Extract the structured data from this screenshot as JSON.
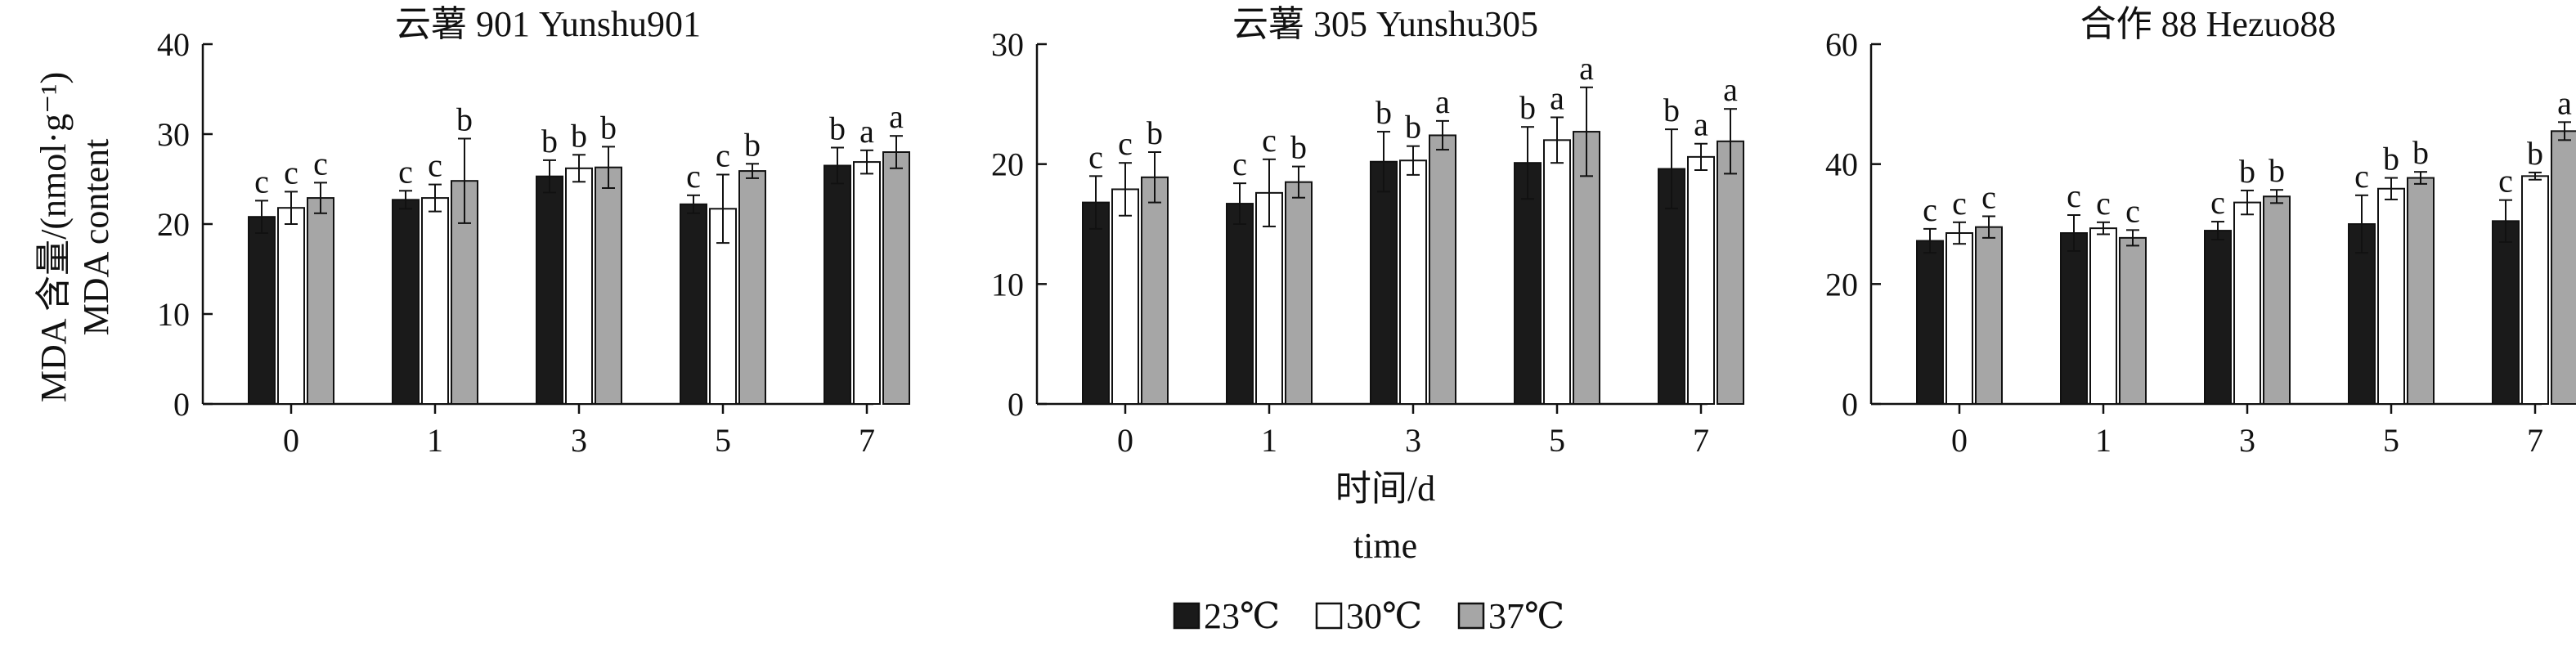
{
  "chart_data": [
    {
      "type": "bar",
      "title": "云薯 901 Yunshu901",
      "ylabel_cn": "MDA 含量/(nmol·g⁻¹)",
      "ylabel_en": "MDA content",
      "ylim": [
        0,
        40
      ],
      "yticks": [
        0,
        10,
        20,
        30,
        40
      ],
      "categories": [
        "0",
        "1",
        "3",
        "5",
        "7"
      ],
      "series": [
        {
          "name": "23℃",
          "values": [
            20.8,
            22.7,
            25.3,
            22.2,
            26.5
          ],
          "errors": [
            1.8,
            1.0,
            1.8,
            1.0,
            2.0
          ],
          "letters": [
            "c",
            "c",
            "b",
            "c",
            "b"
          ]
        },
        {
          "name": "30℃",
          "values": [
            21.8,
            22.9,
            26.2,
            21.7,
            26.9
          ],
          "errors": [
            1.8,
            1.5,
            1.5,
            3.8,
            1.3
          ],
          "letters": [
            "c",
            "c",
            "b",
            "c",
            "a"
          ]
        },
        {
          "name": "37℃",
          "values": [
            22.9,
            24.8,
            26.3,
            25.9,
            28.0
          ],
          "errors": [
            1.7,
            4.7,
            2.3,
            0.8,
            1.8
          ],
          "letters": [
            "c",
            "b",
            "b",
            "b",
            "a"
          ]
        }
      ]
    },
    {
      "type": "bar",
      "title": "云薯 305 Yunshu305",
      "ylim": [
        0,
        30
      ],
      "yticks": [
        0,
        10,
        20,
        30
      ],
      "categories": [
        "0",
        "1",
        "3",
        "5",
        "7"
      ],
      "series": [
        {
          "name": "23℃",
          "values": [
            16.8,
            16.7,
            20.2,
            20.1,
            19.6
          ],
          "errors": [
            2.2,
            1.7,
            2.5,
            3.0,
            3.3
          ],
          "letters": [
            "c",
            "c",
            "b",
            "b",
            "b"
          ]
        },
        {
          "name": "30℃",
          "values": [
            17.9,
            17.6,
            20.3,
            22.0,
            20.6
          ],
          "errors": [
            2.2,
            2.8,
            1.2,
            1.9,
            1.1
          ],
          "letters": [
            "c",
            "c",
            "b",
            "a",
            "a"
          ]
        },
        {
          "name": "37℃",
          "values": [
            18.9,
            18.5,
            22.4,
            22.7,
            21.9
          ],
          "errors": [
            2.1,
            1.3,
            1.2,
            3.7,
            2.7
          ],
          "letters": [
            "b",
            "b",
            "a",
            "a",
            "a"
          ]
        }
      ]
    },
    {
      "type": "bar",
      "title": "合作 88 Hezuo88",
      "ylim": [
        0,
        60
      ],
      "yticks": [
        0,
        20,
        40,
        60
      ],
      "categories": [
        "0",
        "1",
        "3",
        "5",
        "7"
      ],
      "series": [
        {
          "name": "23℃",
          "values": [
            27.2,
            28.5,
            28.9,
            30.0,
            30.5
          ],
          "errors": [
            2.0,
            3.0,
            1.5,
            4.8,
            3.5
          ],
          "letters": [
            "c",
            "c",
            "c",
            "c",
            "c"
          ]
        },
        {
          "name": "30℃",
          "values": [
            28.5,
            29.3,
            33.6,
            35.9,
            38.0
          ],
          "errors": [
            1.8,
            1.0,
            2.0,
            1.8,
            0.6
          ],
          "letters": [
            "c",
            "c",
            "b",
            "b",
            "b"
          ]
        },
        {
          "name": "37℃",
          "values": [
            29.5,
            27.7,
            34.6,
            37.7,
            45.5
          ],
          "errors": [
            1.8,
            1.3,
            1.1,
            1.0,
            1.5
          ],
          "letters": [
            "c",
            "c",
            "b",
            "b",
            "a"
          ]
        }
      ]
    }
  ],
  "xlabel_cn": "时间/d",
  "xlabel_en": "time",
  "legend": [
    {
      "label": "23℃",
      "color": "#1a1a1a"
    },
    {
      "label": "30℃",
      "color": "#ffffff"
    },
    {
      "label": "37℃",
      "color": "#a6a6a6"
    }
  ],
  "colors": {
    "axis": "#111111",
    "bar_dark": "#1a1a1a",
    "bar_white": "#ffffff",
    "bar_gray": "#a6a6a6"
  }
}
